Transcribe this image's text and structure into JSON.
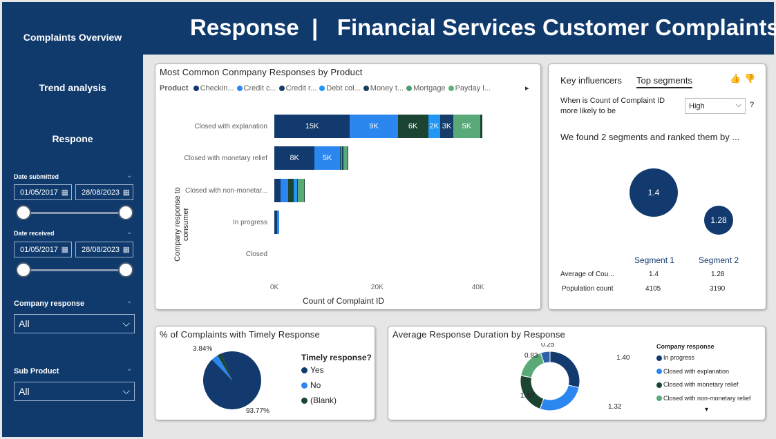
{
  "sidebar": {
    "nav": [
      "Complaints Overview",
      "Trend analysis",
      "Respone"
    ],
    "date_submitted": {
      "label": "Date submitted",
      "from": "01/05/2017",
      "to": "28/08/2023"
    },
    "date_received": {
      "label": "Date received",
      "from": "01/05/2017",
      "to": "28/08/2023"
    },
    "company_response": {
      "label": "Company response",
      "value": "All"
    },
    "sub_product": {
      "label": "Sub Product",
      "value": "All"
    }
  },
  "header": {
    "title": "Response  |   Financial Services Customer Complaints"
  },
  "bar_card": {
    "title": "Most Common Conmpany Responses by Product",
    "legend_title": "Product",
    "legend": [
      {
        "name": "Checkin...",
        "color": "#12366b"
      },
      {
        "name": "Credit c...",
        "color": "#2b86f0"
      },
      {
        "name": "Credit r...",
        "color": "#1a3d66"
      },
      {
        "name": "Debt col...",
        "color": "#2196f3"
      },
      {
        "name": "Money t...",
        "color": "#163f5c"
      },
      {
        "name": "Mortgage",
        "color": "#4e9d71"
      },
      {
        "name": "Payday l...",
        "color": "#5eb37f"
      }
    ],
    "more": "▸",
    "ylabel": "Company response to consumer",
    "xlabel": "Count of Complaint ID",
    "ticks": [
      "0K",
      "20K",
      "40K"
    ]
  },
  "chart_data": [
    {
      "type": "bar",
      "orientation": "horizontal",
      "stacked": true,
      "title": "Most Common Conmpany Responses by Product",
      "xlabel": "Count of Complaint ID",
      "ylabel": "Company response to consumer",
      "xlim": [
        0,
        44000
      ],
      "categories": [
        "Closed with explanation",
        "Closed with monetary relief",
        "Closed with non-monetar...",
        "In progress",
        "Closed"
      ],
      "series": [
        {
          "name": "Checkin...",
          "color": "#123a6e",
          "values": [
            15000,
            8000,
            1300,
            500,
            0
          ]
        },
        {
          "name": "Credit c...",
          "color": "#2b86f0",
          "values": [
            9500,
            5000,
            1500,
            400,
            0
          ]
        },
        {
          "name": "Credit r...",
          "color": "#1b4532",
          "values": [
            6000,
            200,
            1000,
            0,
            0
          ]
        },
        {
          "name": "Debt col...",
          "color": "#2196f3",
          "values": [
            2400,
            200,
            700,
            0,
            0
          ]
        },
        {
          "name": "Money t...",
          "color": "#163d69",
          "values": [
            2600,
            300,
            200,
            0,
            0
          ]
        },
        {
          "name": "Mortgage",
          "color": "#5aa979",
          "values": [
            5300,
            800,
            1200,
            0,
            0
          ]
        },
        {
          "name": "Payday l...",
          "color": "#1b4532",
          "values": [
            400,
            100,
            100,
            0,
            0
          ]
        }
      ],
      "data_labels": [
        [
          "15K",
          "9K",
          "6K",
          "2K",
          "3K",
          "5K",
          ""
        ],
        [
          "8K",
          "5K",
          "",
          "",
          "",
          "",
          ""
        ]
      ]
    },
    {
      "type": "pie",
      "title": "% of Complaints with Timely Response",
      "legend_title": "Timely response?",
      "labels": [
        "Yes",
        "No",
        "(Blank)"
      ],
      "values": [
        93.77,
        3.84,
        2.39
      ],
      "colors": [
        "#123a6e",
        "#2b86f0",
        "#1b4532"
      ],
      "data_labels": [
        "93.77%",
        "3.84%",
        ""
      ]
    },
    {
      "type": "pie",
      "donut": true,
      "title": "Average Response Duration by Response",
      "legend_title": "Company response",
      "labels": [
        "In progress",
        "Closed with explanation",
        "Closed with monetary relief",
        "Closed with non-monetary relief",
        ""
      ],
      "values": [
        1.4,
        1.32,
        1.1,
        0.83,
        0.25
      ],
      "colors": [
        "#123a6e",
        "#2b86f0",
        "#1b4532",
        "#5aa979",
        "#2f5fa8"
      ],
      "data_labels": [
        "1.40",
        "1.32",
        "1.10",
        "0.83",
        "0.25"
      ]
    }
  ],
  "influencer_card": {
    "tab1": "Key influencers",
    "tab2": "Top segments",
    "question": "When is Count of Complaint ID more likely to be",
    "select": "High",
    "help": "?",
    "found": "We found 2 segments and ranked them by ...",
    "seg1_value": "1.4",
    "seg2_value": "1.28",
    "seg1_name": "Segment 1",
    "seg2_name": "Segment 2",
    "row1_label": "Average of Cou...",
    "row1_v1": "1.4",
    "row1_v2": "1.28",
    "row2_label": "Population count",
    "row2_v1": "4105",
    "row2_v2": "3190"
  },
  "pie_card": {
    "title": "% of Complaints with Timely Response",
    "legend_title": "Timely response?",
    "legend": [
      "Yes",
      "No",
      "(Blank)"
    ],
    "label_small": "3.84%",
    "label_big": "93.77%"
  },
  "donut_card": {
    "title": "Average Response Duration by Response",
    "legend_title": "Company response",
    "legend": [
      "In progress",
      "Closed with explanation",
      "Closed with monetary relief",
      "Closed with non-monetary relief"
    ],
    "more": "▾"
  }
}
